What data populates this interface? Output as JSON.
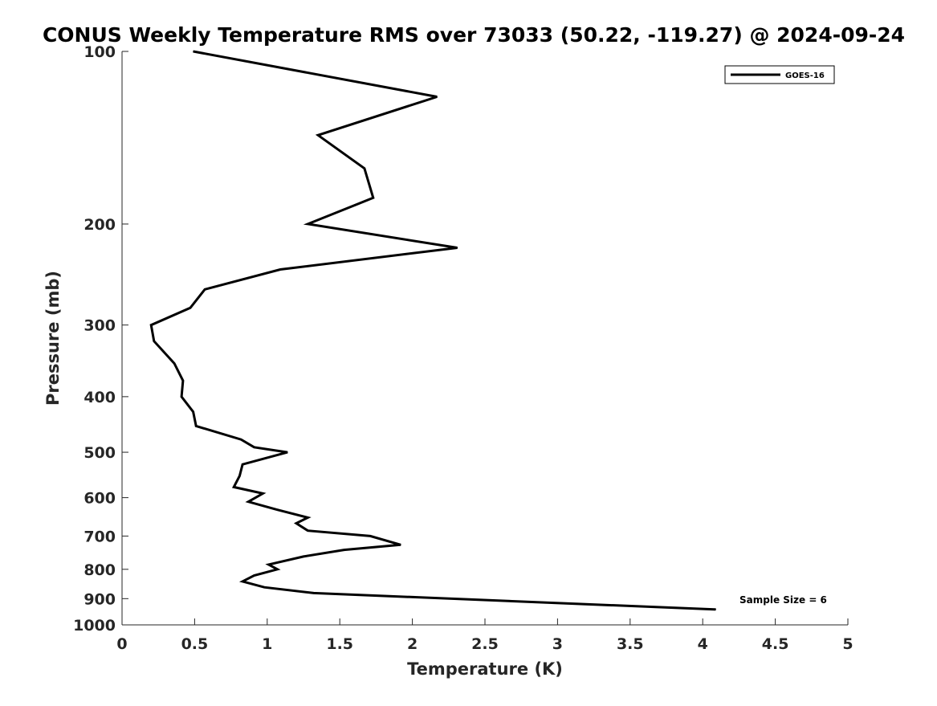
{
  "chart_data": {
    "type": "line",
    "title": "CONUS Weekly Temperature RMS over 73033 (50.22, -119.27) @ 2024-09-24",
    "xlabel": "Temperature (K)",
    "ylabel": "Pressure (mb)",
    "xlim": [
      0,
      5
    ],
    "ylim": [
      100,
      1000
    ],
    "yscale": "log",
    "y_reversed": true,
    "grid": false,
    "legend_position": "top-right",
    "x_ticks": [
      "0",
      "0.5",
      "1",
      "1.5",
      "2",
      "2.5",
      "3",
      "3.5",
      "4",
      "4.5",
      "5"
    ],
    "y_ticks": [
      "100",
      "200",
      "300",
      "400",
      "500",
      "600",
      "700",
      "800",
      "900",
      "1000"
    ],
    "series": [
      {
        "name": "GOES-16",
        "color": "#000000",
        "points": [
          {
            "x": 0.49,
            "y": 100
          },
          {
            "x": 2.17,
            "y": 120
          },
          {
            "x": 1.35,
            "y": 140
          },
          {
            "x": 1.67,
            "y": 160
          },
          {
            "x": 1.73,
            "y": 180
          },
          {
            "x": 1.28,
            "y": 200
          },
          {
            "x": 2.31,
            "y": 220
          },
          {
            "x": 1.09,
            "y": 240
          },
          {
            "x": 0.57,
            "y": 260
          },
          {
            "x": 0.47,
            "y": 280
          },
          {
            "x": 0.2,
            "y": 300
          },
          {
            "x": 0.22,
            "y": 320
          },
          {
            "x": 0.36,
            "y": 350
          },
          {
            "x": 0.42,
            "y": 375
          },
          {
            "x": 0.41,
            "y": 400
          },
          {
            "x": 0.49,
            "y": 425
          },
          {
            "x": 0.51,
            "y": 450
          },
          {
            "x": 0.82,
            "y": 475
          },
          {
            "x": 0.91,
            "y": 490
          },
          {
            "x": 1.14,
            "y": 500
          },
          {
            "x": 0.83,
            "y": 525
          },
          {
            "x": 0.81,
            "y": 550
          },
          {
            "x": 0.77,
            "y": 575
          },
          {
            "x": 0.97,
            "y": 590
          },
          {
            "x": 0.87,
            "y": 610
          },
          {
            "x": 1.07,
            "y": 630
          },
          {
            "x": 1.28,
            "y": 650
          },
          {
            "x": 1.2,
            "y": 665
          },
          {
            "x": 1.28,
            "y": 685
          },
          {
            "x": 1.71,
            "y": 700
          },
          {
            "x": 1.92,
            "y": 725
          },
          {
            "x": 1.53,
            "y": 740
          },
          {
            "x": 1.25,
            "y": 760
          },
          {
            "x": 1.01,
            "y": 785
          },
          {
            "x": 1.07,
            "y": 800
          },
          {
            "x": 0.91,
            "y": 820
          },
          {
            "x": 0.83,
            "y": 840
          },
          {
            "x": 0.98,
            "y": 860
          },
          {
            "x": 1.32,
            "y": 880
          },
          {
            "x": 4.09,
            "y": 940
          }
        ]
      }
    ],
    "annotation": "Sample Size = 6"
  }
}
